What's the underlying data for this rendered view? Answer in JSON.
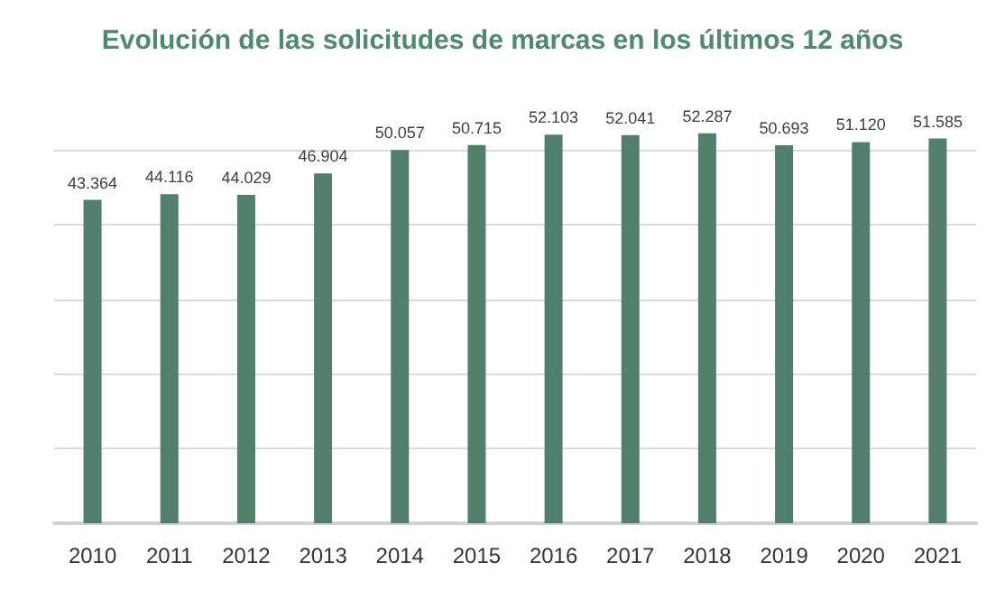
{
  "chart_data": {
    "type": "bar",
    "title": "Evolución de las solicitudes de marcas en los últimos 12 años",
    "categories": [
      "2010",
      "2011",
      "2012",
      "2013",
      "2014",
      "2015",
      "2016",
      "2017",
      "2018",
      "2019",
      "2020",
      "2021"
    ],
    "values": [
      43364,
      44116,
      44029,
      46904,
      50057,
      50715,
      52103,
      52041,
      52287,
      50693,
      51120,
      51585
    ],
    "value_labels": [
      "43.364",
      "44.116",
      "44.029",
      "46.904",
      "50.057",
      "50.715",
      "52.103",
      "52.041",
      "52.287",
      "50.693",
      "51.120",
      "51.585"
    ],
    "color": "#527f6b",
    "yticks": [
      {
        "value": 0,
        "label": null
      },
      {
        "value": 10000,
        "label": null
      },
      {
        "value": 20000,
        "label": null
      },
      {
        "value": 30000,
        "label": null
      },
      {
        "value": 40000,
        "label": null
      },
      {
        "value": 50000,
        "label": null
      }
    ],
    "tick_labels": "x",
    "grid": "y"
  }
}
